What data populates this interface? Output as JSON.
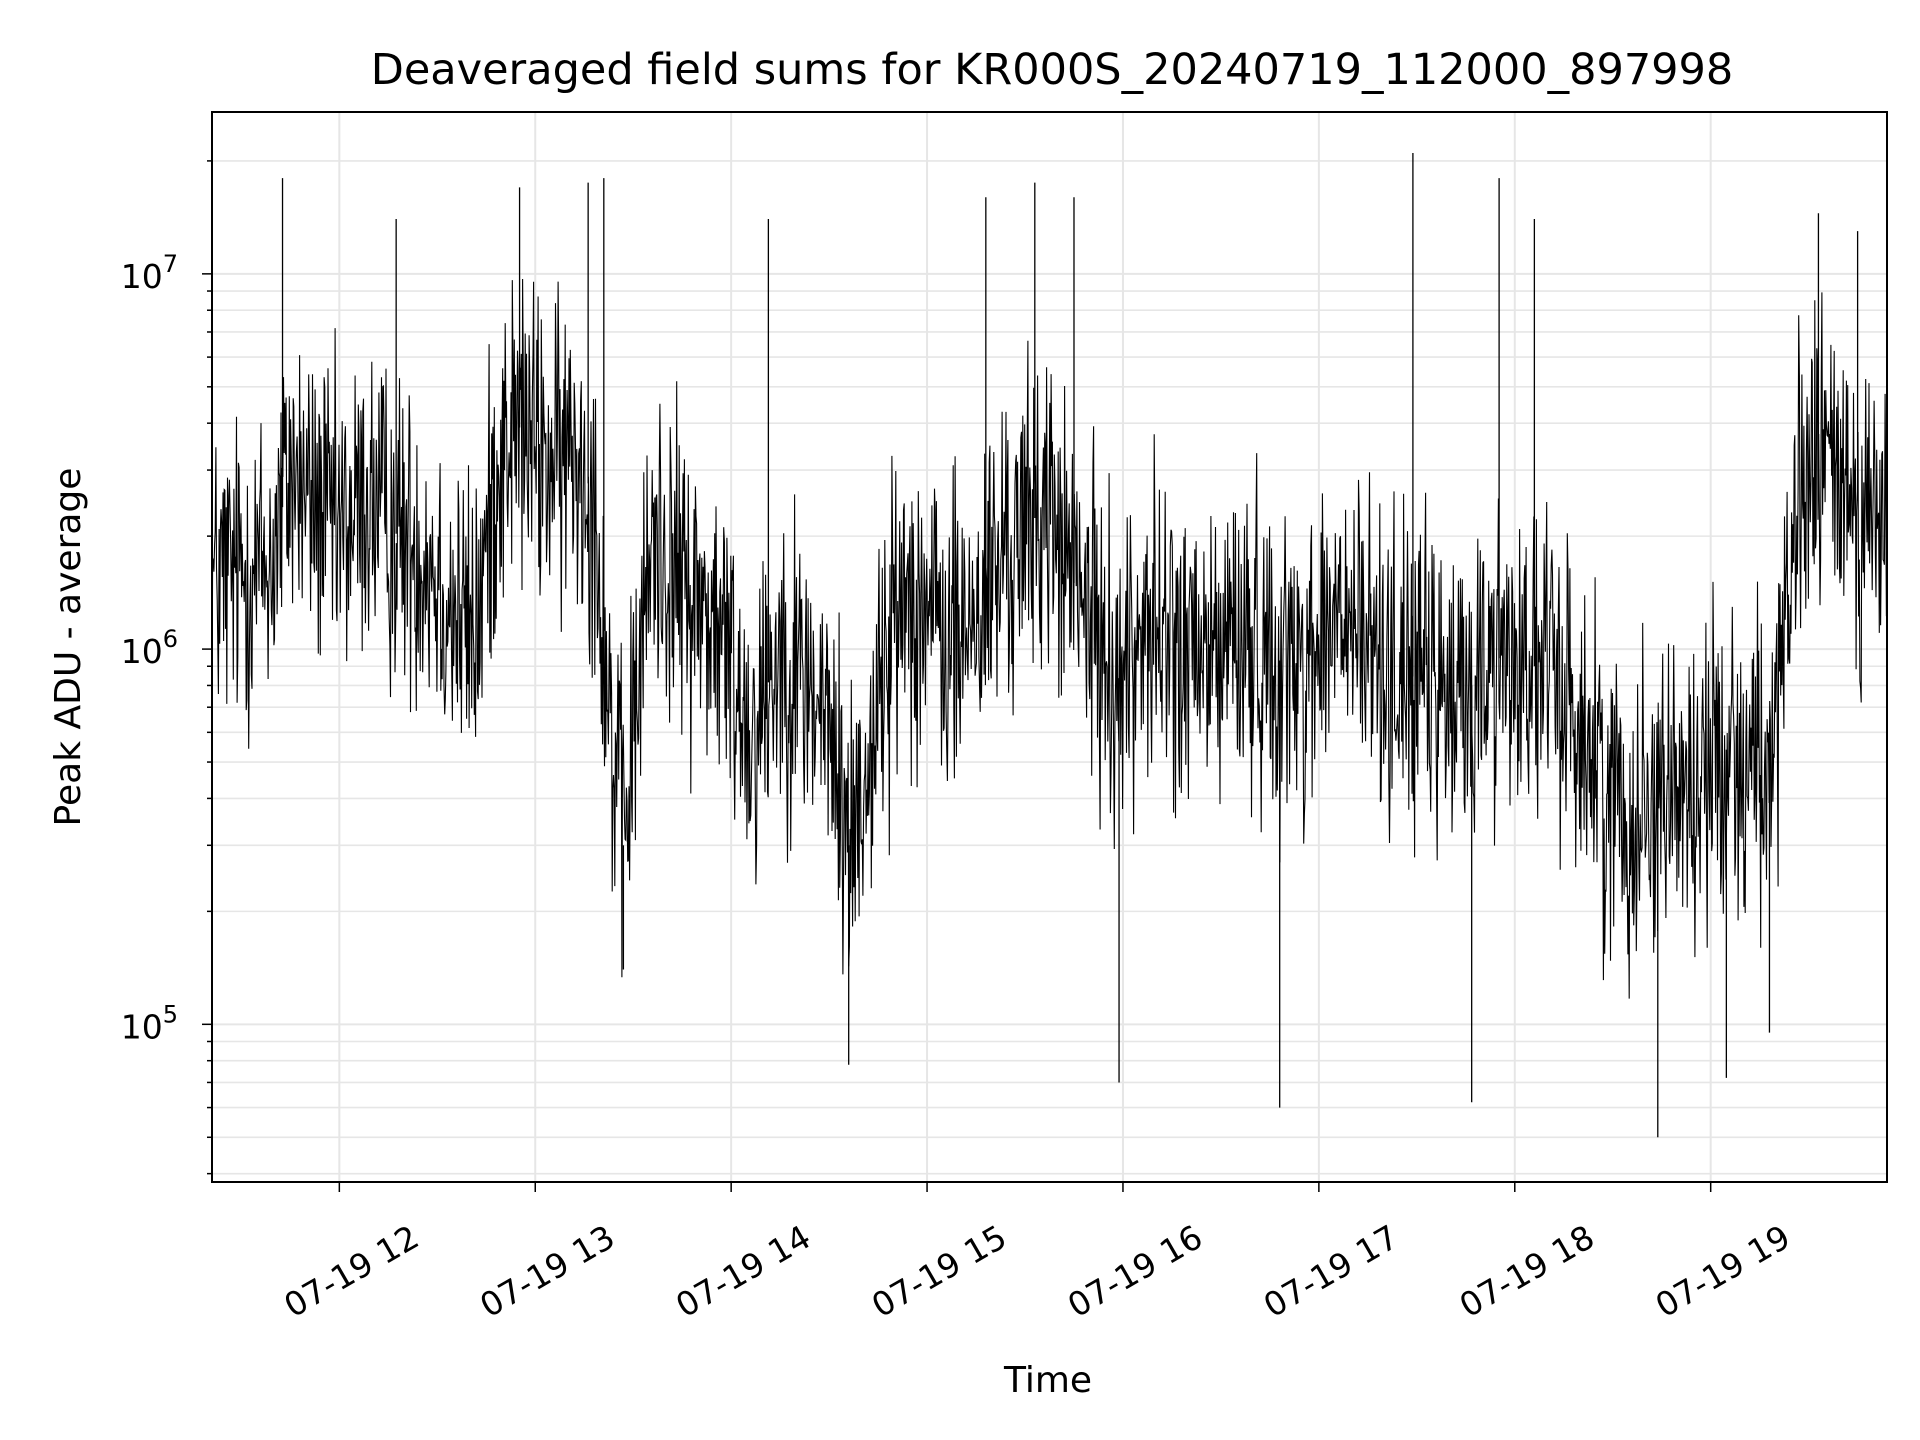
{
  "chart_data": {
    "type": "line",
    "title": "Deaveraged field sums for KR000S_20240719_112000_897998",
    "xlabel": "Time",
    "ylabel": "Peak ADU - average",
    "yscale": "log",
    "ylim": [
      38000,
      27000000
    ],
    "xlim_hours": [
      11.35,
      19.9
    ],
    "grid": true,
    "legend": "none",
    "line_color": "#000000",
    "x_ticks": [
      {
        "hour": 12,
        "label": "07-19 12"
      },
      {
        "hour": 13,
        "label": "07-19 13"
      },
      {
        "hour": 14,
        "label": "07-19 14"
      },
      {
        "hour": 15,
        "label": "07-19 15"
      },
      {
        "hour": 16,
        "label": "07-19 16"
      },
      {
        "hour": 17,
        "label": "07-19 17"
      },
      {
        "hour": 18,
        "label": "07-19 18"
      },
      {
        "hour": 19,
        "label": "07-19 19"
      }
    ],
    "y_ticks": [
      {
        "value": 100000,
        "base": "10",
        "exp": "5"
      },
      {
        "value": 1000000,
        "base": "10",
        "exp": "6"
      },
      {
        "value": 10000000,
        "base": "10",
        "exp": "7"
      }
    ],
    "series": [
      {
        "x_hours": [
          11.35,
          11.5,
          11.65,
          11.75,
          11.85,
          12.0,
          12.15,
          12.3,
          12.45,
          12.6,
          12.7,
          12.8,
          12.9,
          13.0,
          13.1,
          13.2,
          13.3,
          13.4,
          13.45,
          13.5,
          13.6,
          13.75,
          13.9,
          14.0,
          14.1,
          14.25,
          14.4,
          14.5,
          14.6,
          14.7,
          14.8,
          14.9,
          15.0,
          15.1,
          15.25,
          15.4,
          15.5,
          15.6,
          15.75,
          15.9,
          16.0,
          16.1,
          16.25,
          16.4,
          16.55,
          16.7,
          16.85,
          17.0,
          17.1,
          17.25,
          17.4,
          17.55,
          17.7,
          17.85,
          18.0,
          18.1,
          18.25,
          18.4,
          18.5,
          18.6,
          18.75,
          18.9,
          19.0,
          19.1,
          19.25,
          19.35,
          19.45,
          19.5,
          19.6,
          19.7,
          19.8,
          19.9
        ],
        "y": [
          1500000,
          1600000,
          1700000,
          3000000,
          2500000,
          2000000,
          2500000,
          2000000,
          1800000,
          1200000,
          1100000,
          3000000,
          4000000,
          3500000,
          3000000,
          3500000,
          2500000,
          500000,
          300000,
          600000,
          2000000,
          1500000,
          1200000,
          900000,
          600000,
          1000000,
          800000,
          600000,
          300000,
          500000,
          1000000,
          1500000,
          1300000,
          1000000,
          1200000,
          1800000,
          2000000,
          2500000,
          1500000,
          1000000,
          800000,
          1200000,
          1000000,
          900000,
          1100000,
          1000000,
          900000,
          1000000,
          1200000,
          1000000,
          900000,
          800000,
          700000,
          900000,
          1000000,
          900000,
          800000,
          500000,
          400000,
          350000,
          450000,
          400000,
          500000,
          550000,
          500000,
          600000,
          2500000,
          3000000,
          3200000,
          2800000,
          2200000,
          2000000
        ],
        "spikes": [
          {
            "hour": 11.71,
            "value": 18000000
          },
          {
            "hour": 12.29,
            "value": 14000000
          },
          {
            "hour": 12.92,
            "value": 17000000
          },
          {
            "hour": 13.27,
            "value": 17500000
          },
          {
            "hour": 13.35,
            "value": 18000000
          },
          {
            "hour": 14.19,
            "value": 14000000
          },
          {
            "hour": 15.3,
            "value": 16000000
          },
          {
            "hour": 15.55,
            "value": 17500000
          },
          {
            "hour": 15.75,
            "value": 16000000
          },
          {
            "hour": 17.48,
            "value": 21000000
          },
          {
            "hour": 17.92,
            "value": 18000000
          },
          {
            "hour": 18.1,
            "value": 14000000
          },
          {
            "hour": 19.55,
            "value": 14500000
          },
          {
            "hour": 19.75,
            "value": 13000000
          },
          {
            "hour": 14.6,
            "value": 78000
          },
          {
            "hour": 15.98,
            "value": 70000
          },
          {
            "hour": 16.8,
            "value": 60000
          },
          {
            "hour": 17.78,
            "value": 62000
          },
          {
            "hour": 18.73,
            "value": 50000
          },
          {
            "hour": 19.08,
            "value": 72000
          },
          {
            "hour": 13.45,
            "value": 140000
          },
          {
            "hour": 19.3,
            "value": 95000
          }
        ]
      }
    ]
  }
}
